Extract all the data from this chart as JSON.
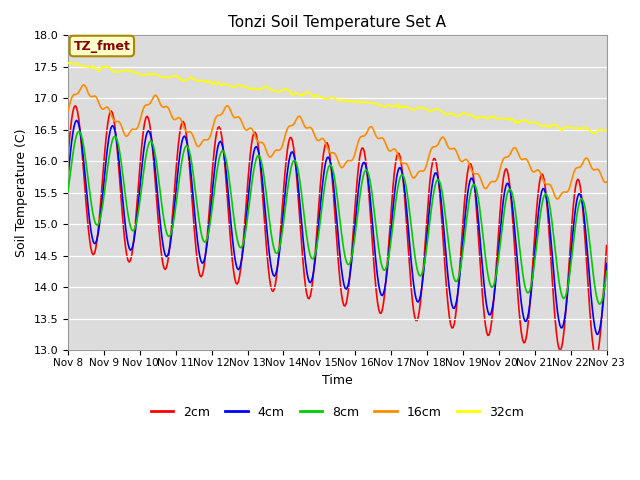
{
  "title": "Tonzi Soil Temperature Set A",
  "xlabel": "Time",
  "ylabel": "Soil Temperature (C)",
  "ylim": [
    13.0,
    18.0
  ],
  "yticks": [
    13.0,
    13.5,
    14.0,
    14.5,
    15.0,
    15.5,
    16.0,
    16.5,
    17.0,
    17.5,
    18.0
  ],
  "annotation_text": "TZ_fmet",
  "annotation_color": "#8B0000",
  "annotation_bg": "#FFFFCC",
  "annotation_border": "#AA8800",
  "series_colors": {
    "2cm": "#FF0000",
    "4cm": "#0000FF",
    "8cm": "#00CC00",
    "16cm": "#FF8C00",
    "32cm": "#FFFF00"
  },
  "bg_color": "#DCDCDC",
  "legend_colors": [
    "#FF0000",
    "#0000FF",
    "#00CC00",
    "#FF8C00",
    "#FFFF00"
  ],
  "legend_labels": [
    "2cm",
    "4cm",
    "8cm",
    "16cm",
    "32cm"
  ]
}
